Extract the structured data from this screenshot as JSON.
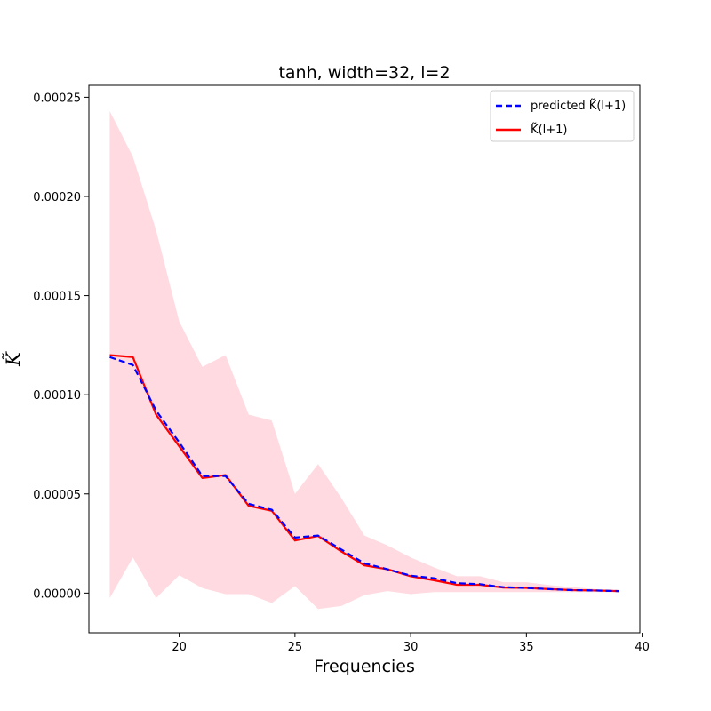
{
  "chart_data": {
    "type": "line",
    "title": "tanh, width=32, l=2",
    "xlabel": "Frequencies",
    "ylabel": "K̃",
    "xlim": [
      16.1,
      39.9
    ],
    "ylim": [
      -2e-05,
      0.000256
    ],
    "xticks": [
      20,
      25,
      30,
      35,
      40
    ],
    "yticks": [
      0.0,
      5e-05,
      0.0001,
      0.00015,
      0.0002,
      0.00025
    ],
    "ytick_labels": [
      "0.00000",
      "0.00005",
      "0.00010",
      "0.00015",
      "0.00020",
      "0.00025"
    ],
    "grid": false,
    "legend_position": "top-right",
    "x": [
      17,
      18,
      19,
      20,
      21,
      22,
      23,
      24,
      25,
      26,
      27,
      28,
      29,
      30,
      31,
      32,
      33,
      34,
      35,
      36,
      37,
      38,
      39
    ],
    "series": [
      {
        "name": "predicted K̃(l+1)",
        "style": "dashed",
        "color": "#0000ff",
        "values": [
          0.000119,
          0.000115,
          9.2e-05,
          7.6e-05,
          5.9e-05,
          5.9e-05,
          4.5e-05,
          4.2e-05,
          2.8e-05,
          2.9e-05,
          2.2e-05,
          1.5e-05,
          1.2e-05,
          8.8e-06,
          7.5e-06,
          5e-06,
          4.5e-06,
          3e-06,
          2.6e-06,
          2e-06,
          1.5e-06,
          1.3e-06,
          1e-06
        ]
      },
      {
        "name": "K̃(l+1)",
        "style": "solid",
        "color": "#ff0000",
        "values": [
          0.00012,
          0.000119,
          9e-05,
          7.4e-05,
          5.8e-05,
          5.95e-05,
          4.4e-05,
          4.15e-05,
          2.65e-05,
          2.88e-05,
          2.1e-05,
          1.4e-05,
          1.2e-05,
          8.5e-06,
          6.5e-06,
          4.2e-06,
          4.2e-06,
          2.8e-06,
          2.6e-06,
          2e-06,
          1.5e-06,
          1.3e-06,
          1e-06
        ]
      }
    ],
    "band": {
      "color": "#ffb6c1",
      "upper": [
        0.000243,
        0.00022,
        0.000183,
        0.000137,
        0.000114,
        0.00012,
        9e-05,
        8.7e-05,
        5e-05,
        6.5e-05,
        4.8e-05,
        2.9e-05,
        2.4e-05,
        1.8e-05,
        1.3e-05,
        8.5e-06,
        8.5e-06,
        5.5e-06,
        5.5e-06,
        4e-06,
        3e-06,
        2e-06,
        1.5e-06
      ],
      "lower": [
        -2.5e-06,
        1.8e-05,
        -2.5e-06,
        9e-06,
        2.5e-06,
        -5e-07,
        -5e-07,
        -5e-06,
        3.5e-06,
        -8e-06,
        -6.5e-06,
        -1e-06,
        1e-06,
        -5e-07,
        5e-07,
        5e-07,
        5e-07,
        5e-07,
        5e-07,
        5e-07,
        5e-07,
        5e-07,
        5e-07
      ]
    }
  }
}
